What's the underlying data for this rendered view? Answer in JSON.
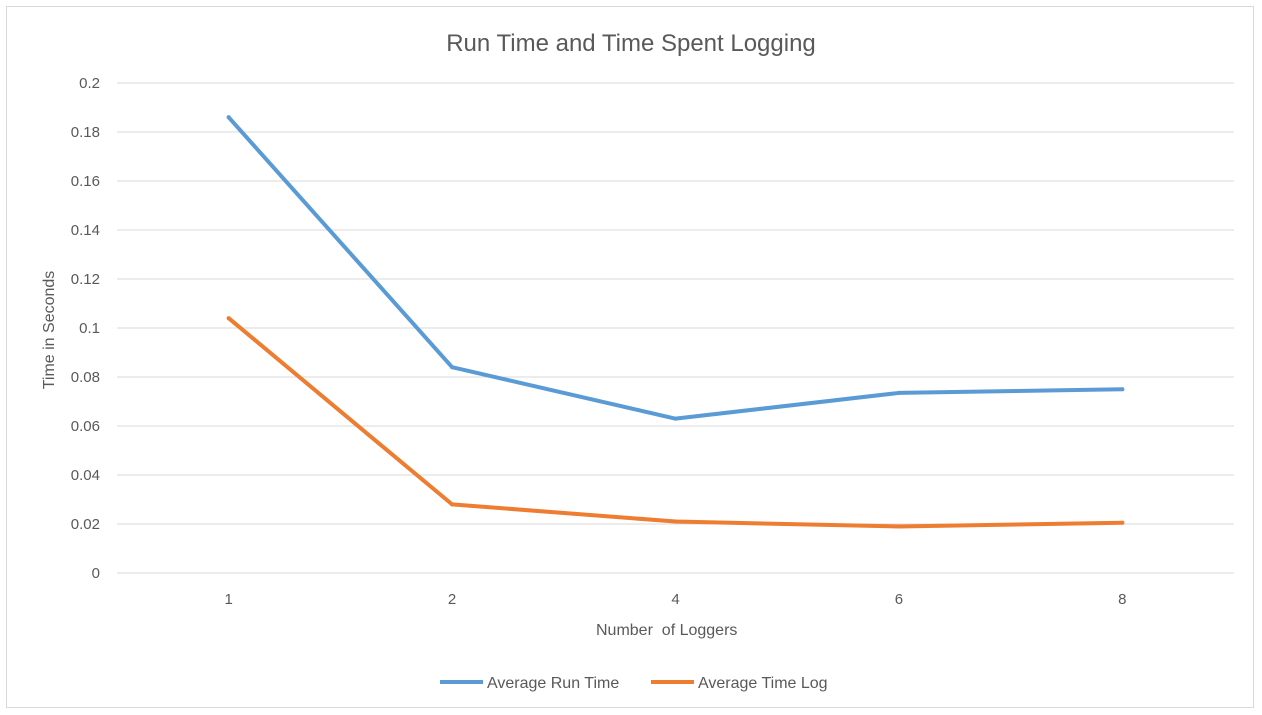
{
  "chart_data": {
    "type": "line",
    "title": "Run Time and Time Spent Logging",
    "xlabel": "Number  of Loggers",
    "ylabel": "Time in Seconds",
    "categories": [
      "1",
      "2",
      "4",
      "6",
      "8"
    ],
    "ylim": [
      0,
      0.2
    ],
    "yticks": [
      "0",
      "0.02",
      "0.04",
      "0.06",
      "0.08",
      "0.1",
      "0.12",
      "0.14",
      "0.16",
      "0.18",
      "0.2"
    ],
    "grid": true,
    "legend_position": "bottom",
    "series": [
      {
        "name": "Average Run Time",
        "color": "#5b9bd5",
        "values": [
          0.186,
          0.084,
          0.063,
          0.0735,
          0.075
        ]
      },
      {
        "name": "Average Time Log",
        "color": "#ed7d31",
        "values": [
          0.104,
          0.028,
          0.021,
          0.019,
          0.0205
        ]
      }
    ]
  }
}
